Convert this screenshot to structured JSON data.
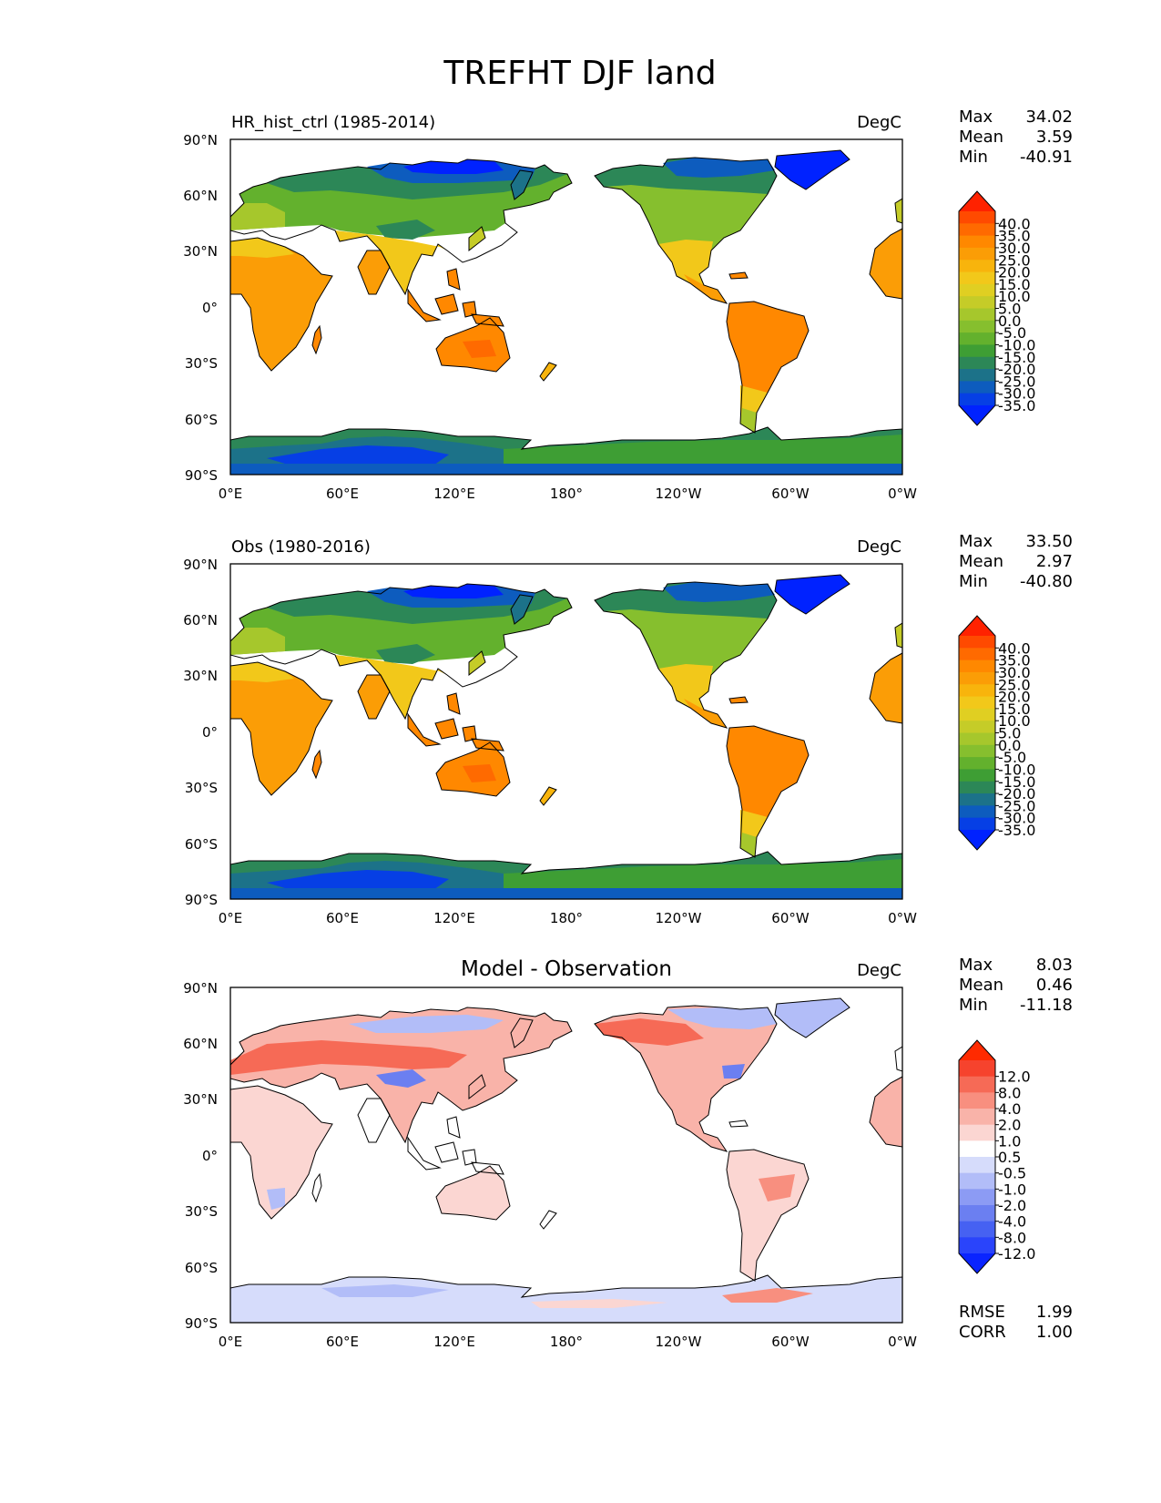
{
  "figure": {
    "title": "TREFHT DJF land"
  },
  "axes": {
    "lat_ticks": [
      "90°N",
      "60°N",
      "30°N",
      "0°",
      "30°S",
      "60°S",
      "90°S"
    ],
    "lon_ticks": [
      "0°E",
      "60°E",
      "120°E",
      "180°",
      "120°W",
      "60°W",
      "0°W"
    ]
  },
  "panels": [
    {
      "left_title": "HR_hist_ctrl (1985-2014)",
      "center_title": "",
      "units": "DegC",
      "stats": [
        {
          "label": "Max",
          "value": "34.02"
        },
        {
          "label": "Mean",
          "value": "3.59"
        },
        {
          "label": "Min",
          "value": "-40.91"
        }
      ],
      "colorbar": {
        "ticks": [
          "40.0",
          "35.0",
          "30.0",
          "25.0",
          "20.0",
          "15.0",
          "10.0",
          "5.0",
          "0.0",
          "-5.0",
          "-10.0",
          "-15.0",
          "-20.0",
          "-25.0",
          "-30.0",
          "-35.0"
        ],
        "colors": [
          "#ff2200",
          "#ff4a00",
          "#ff6a00",
          "#ff8800",
          "#fb9d06",
          "#f8b40c",
          "#f2c81a",
          "#e0cf22",
          "#c5cc28",
          "#a6c72c",
          "#86bf2e",
          "#63b12d",
          "#3e9e34",
          "#2c8757",
          "#1c7289",
          "#0d5cbe",
          "#063fe5",
          "#0022ff"
        ]
      }
    },
    {
      "left_title": "Obs (1980-2016)",
      "center_title": "",
      "units": "DegC",
      "stats": [
        {
          "label": "Max",
          "value": "33.50"
        },
        {
          "label": "Mean",
          "value": "2.97"
        },
        {
          "label": "Min",
          "value": "-40.80"
        }
      ],
      "colorbar": {
        "ticks": [
          "40.0",
          "35.0",
          "30.0",
          "25.0",
          "20.0",
          "15.0",
          "10.0",
          "5.0",
          "0.0",
          "-5.0",
          "-10.0",
          "-15.0",
          "-20.0",
          "-25.0",
          "-30.0",
          "-35.0"
        ],
        "colors": [
          "#ff2200",
          "#ff4a00",
          "#ff6a00",
          "#ff8800",
          "#fb9d06",
          "#f8b40c",
          "#f2c81a",
          "#e0cf22",
          "#c5cc28",
          "#a6c72c",
          "#86bf2e",
          "#63b12d",
          "#3e9e34",
          "#2c8757",
          "#1c7289",
          "#0d5cbe",
          "#063fe5",
          "#0022ff"
        ]
      }
    },
    {
      "left_title": "",
      "center_title": "Model - Observation",
      "units": "DegC",
      "stats": [
        {
          "label": "Max",
          "value": "8.03"
        },
        {
          "label": "Mean",
          "value": "0.46"
        },
        {
          "label": "Min",
          "value": "-11.18"
        }
      ],
      "bottom_stats": [
        {
          "label": "RMSE",
          "value": "1.99"
        },
        {
          "label": "CORR",
          "value": "1.00"
        }
      ],
      "colorbar": {
        "ticks": [
          "12.0",
          "8.0",
          "4.0",
          "2.0",
          "1.0",
          "0.5",
          "-0.5",
          "-1.0",
          "-2.0",
          "-4.0",
          "-8.0",
          "-12.0"
        ],
        "colors": [
          "#ff2a00",
          "#f6432d",
          "#f66a56",
          "#f88f7f",
          "#f9b3a9",
          "#fbd6d2",
          "#ffffff",
          "#d6dcfb",
          "#b2bdf8",
          "#8c9bf4",
          "#6b7ff1",
          "#4661f2",
          "#2a44fb",
          "#0a24ff"
        ]
      },
      "colorbar_extra_tick_index": 0
    }
  ]
}
